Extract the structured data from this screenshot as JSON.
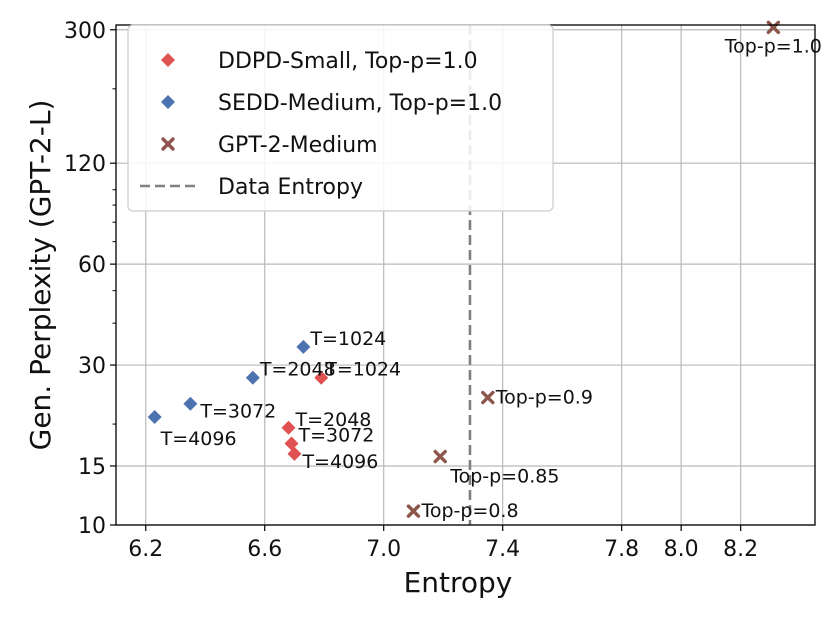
{
  "chart_data": {
    "type": "scatter",
    "title": "",
    "xlabel": "Entropy",
    "ylabel": "Gen. Perplexity (GPT-2-L)",
    "xscale": "linear",
    "yscale": "log",
    "xlim": [
      6.1,
      8.45
    ],
    "ylim": [
      10,
      310
    ],
    "xticks": [
      {
        "value": 6.2,
        "label": "6.2"
      },
      {
        "value": 6.6,
        "label": "6.6"
      },
      {
        "value": 7.0,
        "label": "7.0"
      },
      {
        "value": 7.4,
        "label": "7.4"
      },
      {
        "value": 7.8,
        "label": "7.8"
      },
      {
        "value": 8.0,
        "label": "8.0"
      },
      {
        "value": 8.2,
        "label": "8.2"
      }
    ],
    "yticks": [
      {
        "value": 10,
        "label": "10"
      },
      {
        "value": 15,
        "label": "15"
      },
      {
        "value": 30,
        "label": "30"
      },
      {
        "value": 60,
        "label": "60"
      },
      {
        "value": 120,
        "label": "120"
      },
      {
        "value": 300,
        "label": "300"
      }
    ],
    "grid": true,
    "legend_position": "top-left",
    "reference_line": {
      "name": "Data Entropy",
      "x": 7.29,
      "color": "#808080",
      "style": "dashed"
    },
    "series": [
      {
        "name": "DDPD-Small, Top-p=1.0",
        "marker": "diamond",
        "color": "#e05252",
        "points": [
          {
            "x": 6.79,
            "y": 27.5,
            "label": "T=1024"
          },
          {
            "x": 6.68,
            "y": 19.5,
            "label": "T=2048"
          },
          {
            "x": 6.69,
            "y": 17.5,
            "label": "T=3072"
          },
          {
            "x": 6.7,
            "y": 16.3,
            "label": "T=4096"
          }
        ]
      },
      {
        "name": "SEDD-Medium, Top-p=1.0",
        "marker": "diamond",
        "color": "#4c72b0",
        "points": [
          {
            "x": 6.73,
            "y": 34,
            "label": "T=1024"
          },
          {
            "x": 6.56,
            "y": 27.5,
            "label": "T=2048"
          },
          {
            "x": 6.35,
            "y": 23,
            "label": "T=3072"
          },
          {
            "x": 6.23,
            "y": 21,
            "label": "T=4096"
          }
        ]
      },
      {
        "name": "GPT-2-Medium",
        "marker": "x",
        "color": "#8c564b",
        "points": [
          {
            "x": 8.31,
            "y": 305,
            "label": "Top-p=1.0"
          },
          {
            "x": 7.35,
            "y": 24,
            "label": "Top-p=0.9"
          },
          {
            "x": 7.19,
            "y": 16,
            "label": "Top-p=0.85"
          },
          {
            "x": 7.1,
            "y": 11,
            "label": "Top-p=0.8"
          }
        ]
      }
    ]
  }
}
